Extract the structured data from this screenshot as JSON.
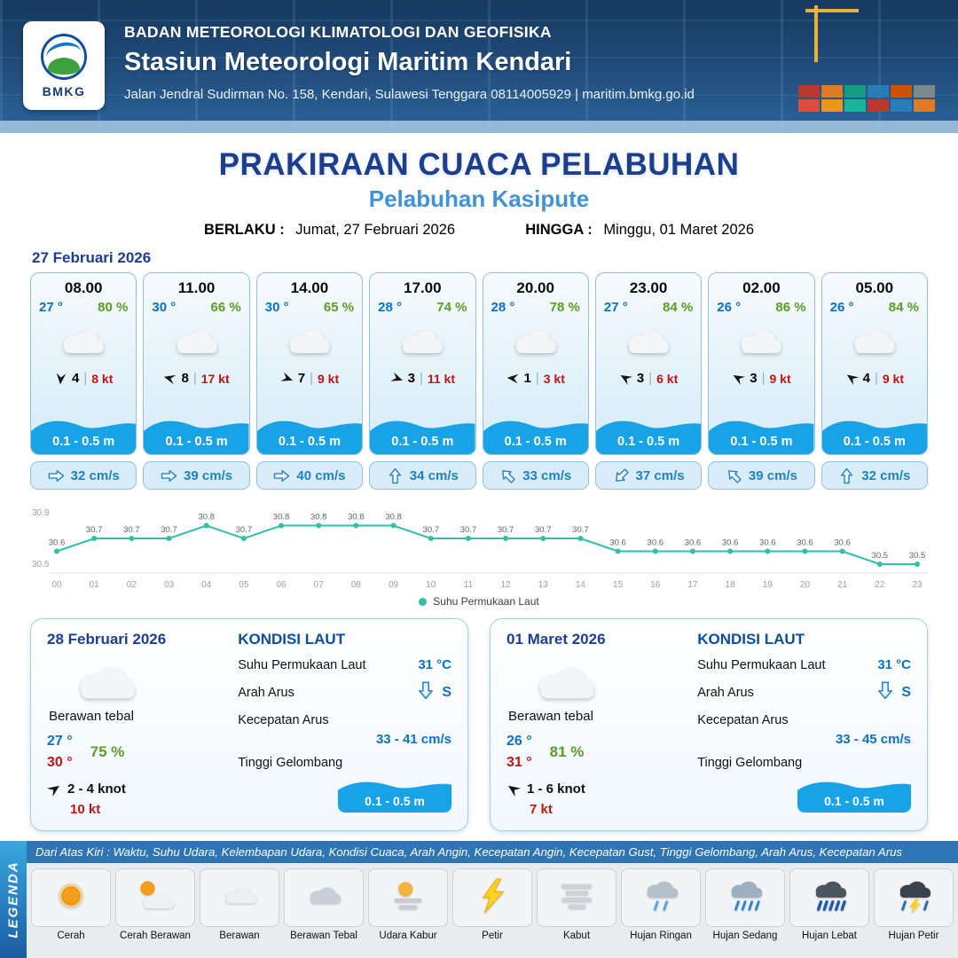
{
  "header": {
    "agency": "BADAN METEOROLOGI KLIMATOLOGI DAN GEOFISIKA",
    "station": "Stasiun Meteorologi Maritim Kendari",
    "address": "Jalan Jendral Sudirman No. 158, Kendari, Sulawesi Tenggara  08114005929 | maritim.bmkg.go.id",
    "logo_text": "BMKG"
  },
  "title": {
    "main": "PRAKIRAAN CUACA PELABUHAN",
    "subtitle": "Pelabuhan Kasipute",
    "valid_label": "BERLAKU :",
    "valid_value": "Jumat, 27 Februari 2026",
    "until_label": "HINGGA :",
    "until_value": "Minggu, 01 Maret 2026"
  },
  "forecast": {
    "date": "27 Februari 2026",
    "separator": "|",
    "cards": [
      {
        "time": "08.00",
        "temp": "27 °",
        "humidity": "80 %",
        "wind_val": "4",
        "wind_kt": "8 kt",
        "wind_deg": 95,
        "wave": "0.1 - 0.5 m",
        "current": "32 cm/s",
        "current_deg": 0
      },
      {
        "time": "11.00",
        "temp": "30 °",
        "humidity": "66 %",
        "wind_val": "8",
        "wind_kt": "17 kt",
        "wind_deg": 195,
        "wave": "0.1 - 0.5 m",
        "current": "39 cm/s",
        "current_deg": 0
      },
      {
        "time": "14.00",
        "temp": "30 °",
        "humidity": "65 %",
        "wind_val": "7",
        "wind_kt": "9 kt",
        "wind_deg": 20,
        "wave": "0.1 - 0.5 m",
        "current": "40 cm/s",
        "current_deg": 0
      },
      {
        "time": "17.00",
        "temp": "28 °",
        "humidity": "74 %",
        "wind_val": "3",
        "wind_kt": "11 kt",
        "wind_deg": 20,
        "wave": "0.1 - 0.5 m",
        "current": "34 cm/s",
        "current_deg": -90
      },
      {
        "time": "20.00",
        "temp": "28 °",
        "humidity": "78 %",
        "wind_val": "1",
        "wind_kt": "3 kt",
        "wind_deg": 185,
        "wave": "0.1 - 0.5 m",
        "current": "33 cm/s",
        "current_deg": -135
      },
      {
        "time": "23.00",
        "temp": "27 °",
        "humidity": "84 %",
        "wind_val": "3",
        "wind_kt": "6 kt",
        "wind_deg": 210,
        "wave": "0.1 - 0.5 m",
        "current": "37 cm/s",
        "current_deg": 135
      },
      {
        "time": "02.00",
        "temp": "26 °",
        "humidity": "86 %",
        "wind_val": "3",
        "wind_kt": "9 kt",
        "wind_deg": 210,
        "wave": "0.1 - 0.5 m",
        "current": "39 cm/s",
        "current_deg": -135
      },
      {
        "time": "05.00",
        "temp": "26 °",
        "humidity": "84 %",
        "wind_val": "4",
        "wind_kt": "9 kt",
        "wind_deg": 215,
        "wave": "0.1 - 0.5 m",
        "current": "32 cm/s",
        "current_deg": -90
      }
    ]
  },
  "chart_data": {
    "type": "line",
    "title": "",
    "x": [
      "00",
      "01",
      "02",
      "03",
      "04",
      "05",
      "06",
      "07",
      "08",
      "09",
      "10",
      "11",
      "12",
      "13",
      "14",
      "15",
      "16",
      "17",
      "18",
      "19",
      "20",
      "21",
      "22",
      "23"
    ],
    "series": [
      {
        "name": "Suhu Permukaan Laut",
        "values": [
          30.6,
          30.7,
          30.7,
          30.7,
          30.8,
          30.7,
          30.8,
          30.8,
          30.8,
          30.8,
          30.7,
          30.7,
          30.7,
          30.7,
          30.7,
          30.6,
          30.6,
          30.6,
          30.6,
          30.6,
          30.6,
          30.6,
          30.5,
          30.5
        ]
      }
    ],
    "ylim": [
      30.5,
      30.9
    ],
    "line_color": "#2fc0a5",
    "legend_position": "bottom",
    "grid": false
  },
  "daily": [
    {
      "date": "28 Februari 2026",
      "condition": "Berawan tebal",
      "temp_min": "27 °",
      "temp_max": "30 °",
      "humidity": "75 %",
      "wind_range": "2  - 4 knot",
      "wind_gust": "10 kt",
      "wind_deg": -35,
      "sea": {
        "heading": "KONDISI LAUT",
        "sst_label": "Suhu Permukaan Laut",
        "sst": "31 °C",
        "dir_label": "Arah Arus",
        "dir": "S",
        "speed_label": "Kecepatan Arus",
        "speed": "33  - 41 cm/s",
        "wave_label": "Tinggi Gelombang",
        "wave": "0.1 - 0.5 m"
      }
    },
    {
      "date": "01 Maret 2026",
      "condition": "Berawan tebal",
      "temp_min": "26 °",
      "temp_max": "31 °",
      "humidity": "81 %",
      "wind_range": "1  - 6 knot",
      "wind_gust": "7 kt",
      "wind_deg": 215,
      "sea": {
        "heading": "KONDISI LAUT",
        "sst_label": "Suhu Permukaan Laut",
        "sst": "31 °C",
        "dir_label": "Arah Arus",
        "dir": "S",
        "speed_label": "Kecepatan Arus",
        "speed": "33  - 45 cm/s",
        "wave_label": "Tinggi Gelombang",
        "wave": "0.1 - 0.5 m"
      }
    }
  ],
  "legend": {
    "title": "LEGENDA",
    "description": "Dari Atas Kiri : Waktu, Suhu Udara, Kelembapan Udara, Kondisi Cuaca, Arah Angin, Kecepatan Angin, Kecepatan Gust, Tinggi Gelombang, Arah Arus, Kecepatan Arus",
    "items": [
      {
        "label": "Cerah",
        "icon": "sun"
      },
      {
        "label": "Cerah Berawan",
        "icon": "sun-cloud"
      },
      {
        "label": "Berawan",
        "icon": "cloud"
      },
      {
        "label": "Berawan Tebal",
        "icon": "cloud-thick"
      },
      {
        "label": "Udara Kabur",
        "icon": "haze"
      },
      {
        "label": "Petir",
        "icon": "lightning"
      },
      {
        "label": "Kabut",
        "icon": "fog"
      },
      {
        "label": "Hujan Ringan",
        "icon": "rain-light"
      },
      {
        "label": "Hujan Sedang",
        "icon": "rain-medium"
      },
      {
        "label": "Hujan Lebat",
        "icon": "rain-heavy"
      },
      {
        "label": "Hujan Petir",
        "icon": "rain-lightning"
      }
    ]
  }
}
